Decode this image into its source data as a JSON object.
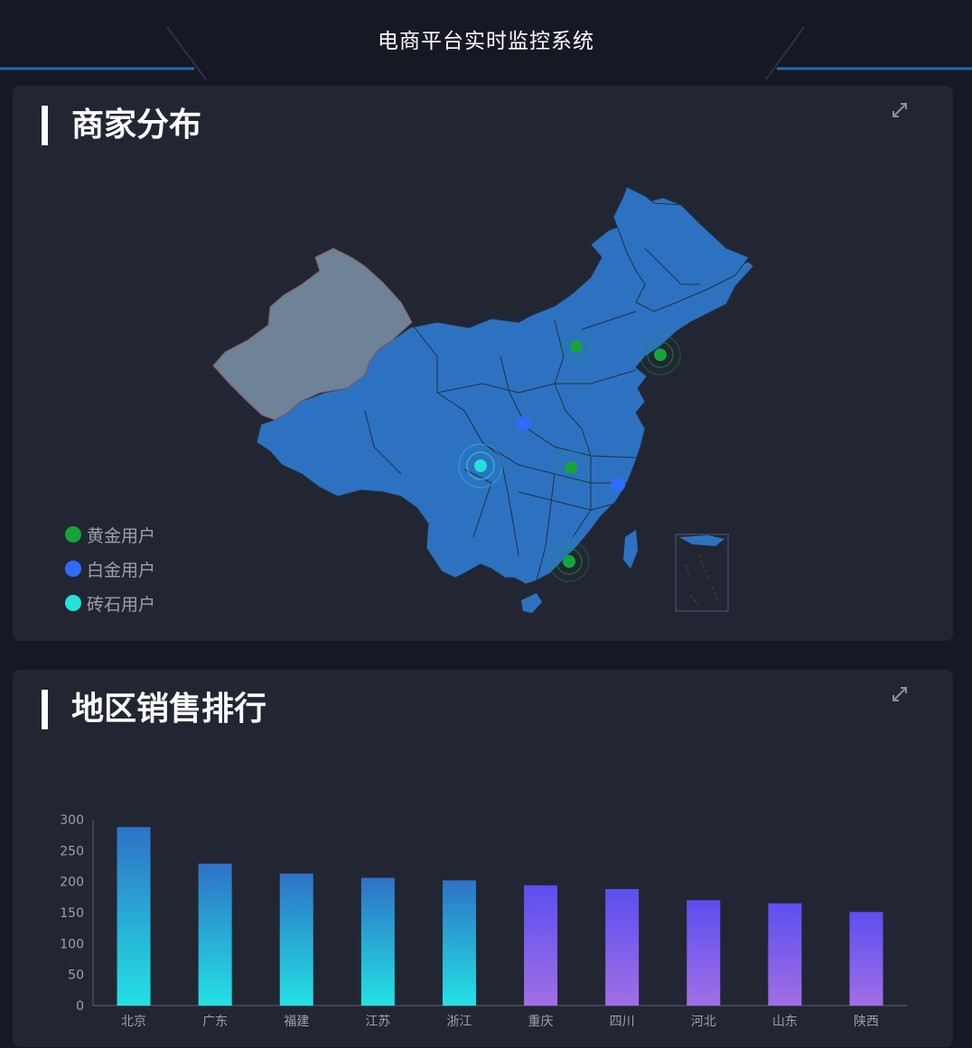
{
  "header": {
    "title": "电商平台实时监控系统"
  },
  "map_panel": {
    "title": "商家分布",
    "legend": [
      {
        "label": "黄金用户",
        "color": "#14a538"
      },
      {
        "label": "白金用户",
        "color": "#2f6bff"
      },
      {
        "label": "砖石用户",
        "color": "#21e3d6"
      }
    ],
    "colors": {
      "map_fill": "#2d72c0",
      "xinjiang_fill": "#6e8298"
    }
  },
  "bar_panel": {
    "title": "地区销售排行",
    "chart_data": {
      "type": "bar",
      "categories": [
        "北京",
        "广东",
        "福建",
        "江苏",
        "浙江",
        "重庆",
        "四川",
        "河北",
        "山东",
        "陕西"
      ],
      "values": [
        288,
        229,
        213,
        206,
        202,
        194,
        188,
        170,
        165,
        151
      ],
      "ylim": [
        0,
        300
      ],
      "yticks": [
        0,
        50,
        100,
        150,
        200,
        250,
        300
      ],
      "gradient_groups": [
        {
          "top": "#2e72c6",
          "bottom": "#23e1e3"
        },
        {
          "top": "#5b4ff0",
          "bottom": "#a16ee5"
        }
      ]
    }
  }
}
